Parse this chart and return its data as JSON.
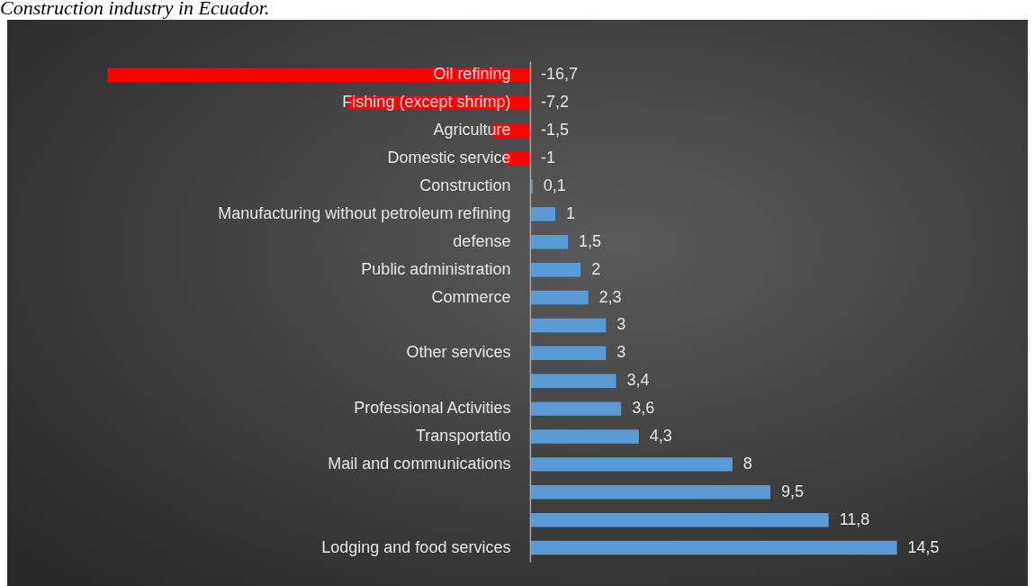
{
  "chart_data": {
    "type": "bar",
    "orientation": "horizontal",
    "title": "Construction industry in Ecuador.",
    "categories": [
      "Oil refining",
      "Fishing (except shrimp)",
      "Agriculture",
      "Domestic service",
      "Construction",
      "Manufacturing without petroleum refining",
      "defense",
      "Public administration",
      "Commerce",
      null,
      "Other services",
      null,
      "Professional Activities",
      "Transportatio",
      "Mail and communications",
      null,
      null,
      "Lodging and food services"
    ],
    "values": [
      -16.7,
      -7.2,
      -1.5,
      -1,
      0.1,
      1,
      1.5,
      2,
      2.3,
      3,
      3,
      3.4,
      3.6,
      4.3,
      8,
      9.5,
      11.8,
      14.5
    ],
    "colors": [
      "#ff0000",
      "#ff0000",
      "#ff0000",
      "#ff0000",
      "#5b9bd5",
      "#5b9bd5",
      "#5b9bd5",
      "#5b9bd5",
      "#5b9bd5",
      "#5b9bd5",
      "#5b9bd5",
      "#5b9bd5",
      "#5b9bd5",
      "#5b9bd5",
      "#5b9bd5",
      "#5b9bd5",
      "#5b9bd5",
      "#5b9bd5"
    ],
    "value_labels": [
      "-16,7",
      "-7,2",
      "-1,5",
      "-1",
      "0,1",
      "1",
      "1,5",
      "2",
      "2,3",
      "3",
      "3",
      "3,4",
      "3,6",
      "4,3",
      "8",
      "9,5",
      "11,8",
      "14,5"
    ]
  }
}
